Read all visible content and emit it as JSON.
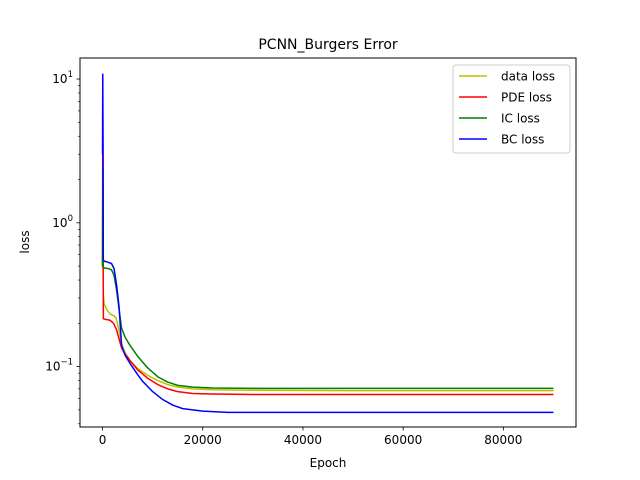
{
  "chart_data": {
    "type": "line",
    "title": "PCNN_Burgers Error",
    "xlabel": "Epoch",
    "ylabel": "loss",
    "xlim": [
      -4500,
      94500
    ],
    "ylim": [
      0.038,
      14
    ],
    "yscale": "log",
    "grid": false,
    "legend_position": "top-right",
    "x_ticks": [
      {
        "value": 0,
        "label": "0"
      },
      {
        "value": 20000,
        "label": "20000"
      },
      {
        "value": 40000,
        "label": "40000"
      },
      {
        "value": 60000,
        "label": "60000"
      },
      {
        "value": 80000,
        "label": "80000"
      }
    ],
    "y_ticks": [
      {
        "value": 0.1,
        "label": "10",
        "exp": "−1"
      },
      {
        "value": 1,
        "label": "10",
        "exp": "0"
      },
      {
        "value": 10,
        "label": "10",
        "exp": "1"
      }
    ],
    "series": [
      {
        "name": "data loss",
        "color": "#bfbf00",
        "points": [
          [
            0,
            0.48
          ],
          [
            50,
            3.0
          ],
          [
            100,
            1.2
          ],
          [
            150,
            0.32
          ],
          [
            300,
            0.275
          ],
          [
            800,
            0.25
          ],
          [
            1500,
            0.232
          ],
          [
            2300,
            0.225
          ],
          [
            2700,
            0.218
          ],
          [
            3200,
            0.185
          ],
          [
            3700,
            0.148
          ],
          [
            4500,
            0.125
          ],
          [
            5500,
            0.11
          ],
          [
            7000,
            0.097
          ],
          [
            9000,
            0.087
          ],
          [
            11000,
            0.08
          ],
          [
            13000,
            0.075
          ],
          [
            15000,
            0.072
          ],
          [
            18000,
            0.07
          ],
          [
            22000,
            0.069
          ],
          [
            30000,
            0.0685
          ],
          [
            50000,
            0.068
          ],
          [
            70000,
            0.068
          ],
          [
            90000,
            0.068
          ]
        ]
      },
      {
        "name": "PDE loss",
        "color": "#ff0000",
        "points": [
          [
            0,
            0.5
          ],
          [
            40,
            6.2
          ],
          [
            100,
            0.9
          ],
          [
            160,
            0.215
          ],
          [
            600,
            0.213
          ],
          [
            1500,
            0.21
          ],
          [
            2200,
            0.2
          ],
          [
            2800,
            0.18
          ],
          [
            3300,
            0.155
          ],
          [
            3800,
            0.135
          ],
          [
            4500,
            0.122
          ],
          [
            5500,
            0.11
          ],
          [
            7000,
            0.095
          ],
          [
            9000,
            0.083
          ],
          [
            11000,
            0.075
          ],
          [
            13000,
            0.07
          ],
          [
            15000,
            0.067
          ],
          [
            18000,
            0.065
          ],
          [
            22000,
            0.0645
          ],
          [
            30000,
            0.064
          ],
          [
            50000,
            0.064
          ],
          [
            70000,
            0.064
          ],
          [
            90000,
            0.064
          ]
        ]
      },
      {
        "name": "IC loss",
        "color": "#008000",
        "points": [
          [
            0,
            0.5
          ],
          [
            60,
            2.5
          ],
          [
            120,
            0.49
          ],
          [
            400,
            0.485
          ],
          [
            1200,
            0.48
          ],
          [
            1800,
            0.47
          ],
          [
            2300,
            0.43
          ],
          [
            2800,
            0.34
          ],
          [
            3300,
            0.25
          ],
          [
            3800,
            0.185
          ],
          [
            4500,
            0.16
          ],
          [
            5500,
            0.14
          ],
          [
            7000,
            0.118
          ],
          [
            9000,
            0.098
          ],
          [
            11000,
            0.085
          ],
          [
            13000,
            0.078
          ],
          [
            15000,
            0.074
          ],
          [
            18000,
            0.072
          ],
          [
            22000,
            0.071
          ],
          [
            30000,
            0.0705
          ],
          [
            50000,
            0.0705
          ],
          [
            70000,
            0.0705
          ],
          [
            90000,
            0.0705
          ]
        ]
      },
      {
        "name": "BC loss",
        "color": "#0000ff",
        "points": [
          [
            0,
            3.0
          ],
          [
            40,
            10.8
          ],
          [
            100,
            3.5
          ],
          [
            150,
            0.55
          ],
          [
            400,
            0.54
          ],
          [
            1200,
            0.53
          ],
          [
            1800,
            0.52
          ],
          [
            2300,
            0.48
          ],
          [
            2800,
            0.37
          ],
          [
            3300,
            0.26
          ],
          [
            3800,
            0.14
          ],
          [
            4500,
            0.12
          ],
          [
            5500,
            0.105
          ],
          [
            7000,
            0.088
          ],
          [
            8000,
            0.079
          ],
          [
            10000,
            0.067
          ],
          [
            12000,
            0.059
          ],
          [
            14000,
            0.054
          ],
          [
            16000,
            0.051
          ],
          [
            20000,
            0.049
          ],
          [
            25000,
            0.048
          ],
          [
            35000,
            0.048
          ],
          [
            60000,
            0.048
          ],
          [
            90000,
            0.048
          ]
        ]
      }
    ]
  }
}
